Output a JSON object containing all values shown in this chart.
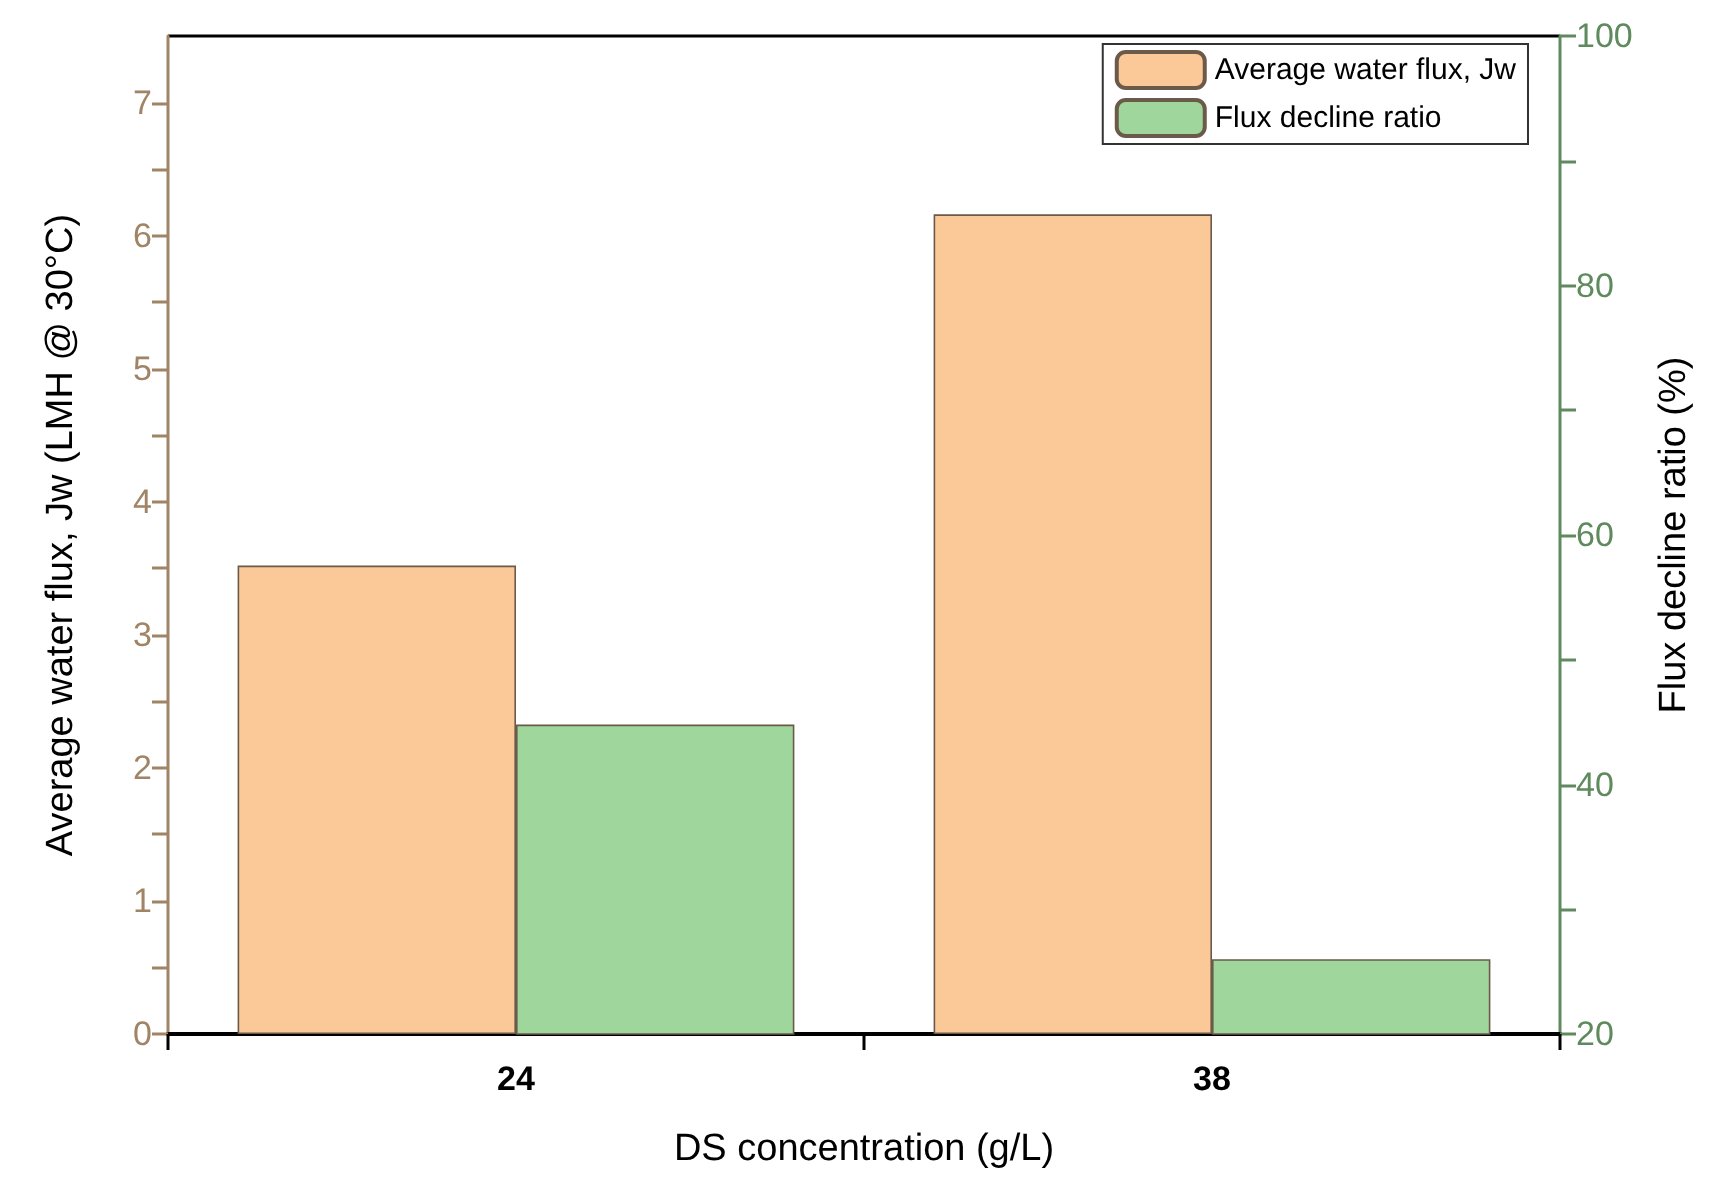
{
  "chart_data": {
    "type": "bar",
    "xlabel": "DS concentration (g/L)",
    "ylabel": "Average water flux, Jw (LMH @ 30°C)",
    "y2label": "Flux decline ratio (%)",
    "categories": [
      "24",
      "38"
    ],
    "series": [
      {
        "name": "Average water flux, Jw",
        "color": "#fbc897",
        "values": [
          3.52,
          6.16
        ]
      },
      {
        "name": "Flux decline ratio",
        "color": "#9fd69c",
        "values": [
          44.8,
          26.0
        ],
        "axis": "y2"
      }
    ],
    "ylim": [
      0,
      7.5
    ],
    "yticks": [
      0,
      {
        "value": 0.5,
        "label": null
      },
      1,
      {
        "value": 1.5,
        "label": null
      },
      2,
      {
        "value": 2.5,
        "label": null
      },
      3,
      {
        "value": 3.5,
        "label": null
      },
      4,
      {
        "value": 4.5,
        "label": null
      },
      5,
      {
        "value": 5.5,
        "label": null
      },
      6,
      {
        "value": 6.5,
        "label": null
      },
      7
    ],
    "y2lim": [
      20,
      100
    ],
    "y2ticks": [
      20,
      {
        "value": 30,
        "label": null
      },
      40,
      {
        "value": 50,
        "label": null
      },
      60,
      {
        "value": 70,
        "label": null
      },
      80,
      {
        "value": 90,
        "label": null
      },
      100
    ],
    "grid": false,
    "legend": "top right"
  }
}
